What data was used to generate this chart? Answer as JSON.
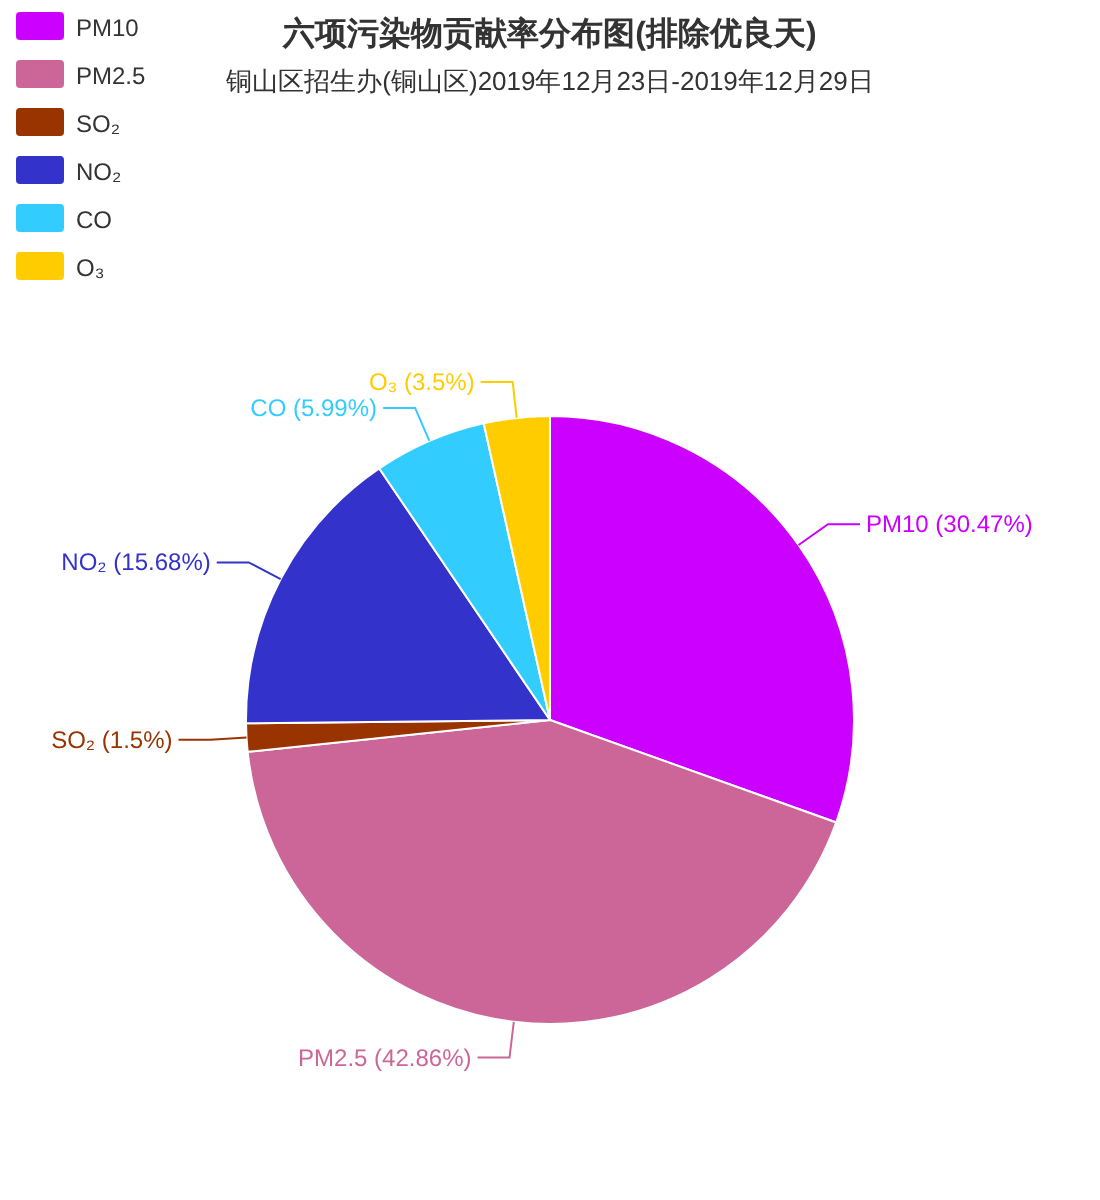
{
  "chart_data": {
    "type": "pie",
    "title": "六项污染物贡献率分布图(排除优良天)",
    "subtitle": "铜山区招生办(铜山区)2019年12月23日-2019年12月29日",
    "categories": [
      "PM10",
      "PM2.5",
      "SO₂",
      "NO₂",
      "CO",
      "O₃"
    ],
    "values": [
      30.47,
      42.86,
      1.5,
      15.68,
      5.99,
      3.5
    ],
    "colors": [
      "#cc00ff",
      "#cc6699",
      "#993300",
      "#3333cc",
      "#33ccff",
      "#ffcc00"
    ],
    "value_labels": [
      "PM10 (30.47%)",
      "PM2.5 (42.86%)",
      "SO₂ (1.5%)",
      "NO₂ (15.68%)",
      "CO (5.99%)",
      "O₃ (3.5%)"
    ],
    "legend": "top left"
  }
}
